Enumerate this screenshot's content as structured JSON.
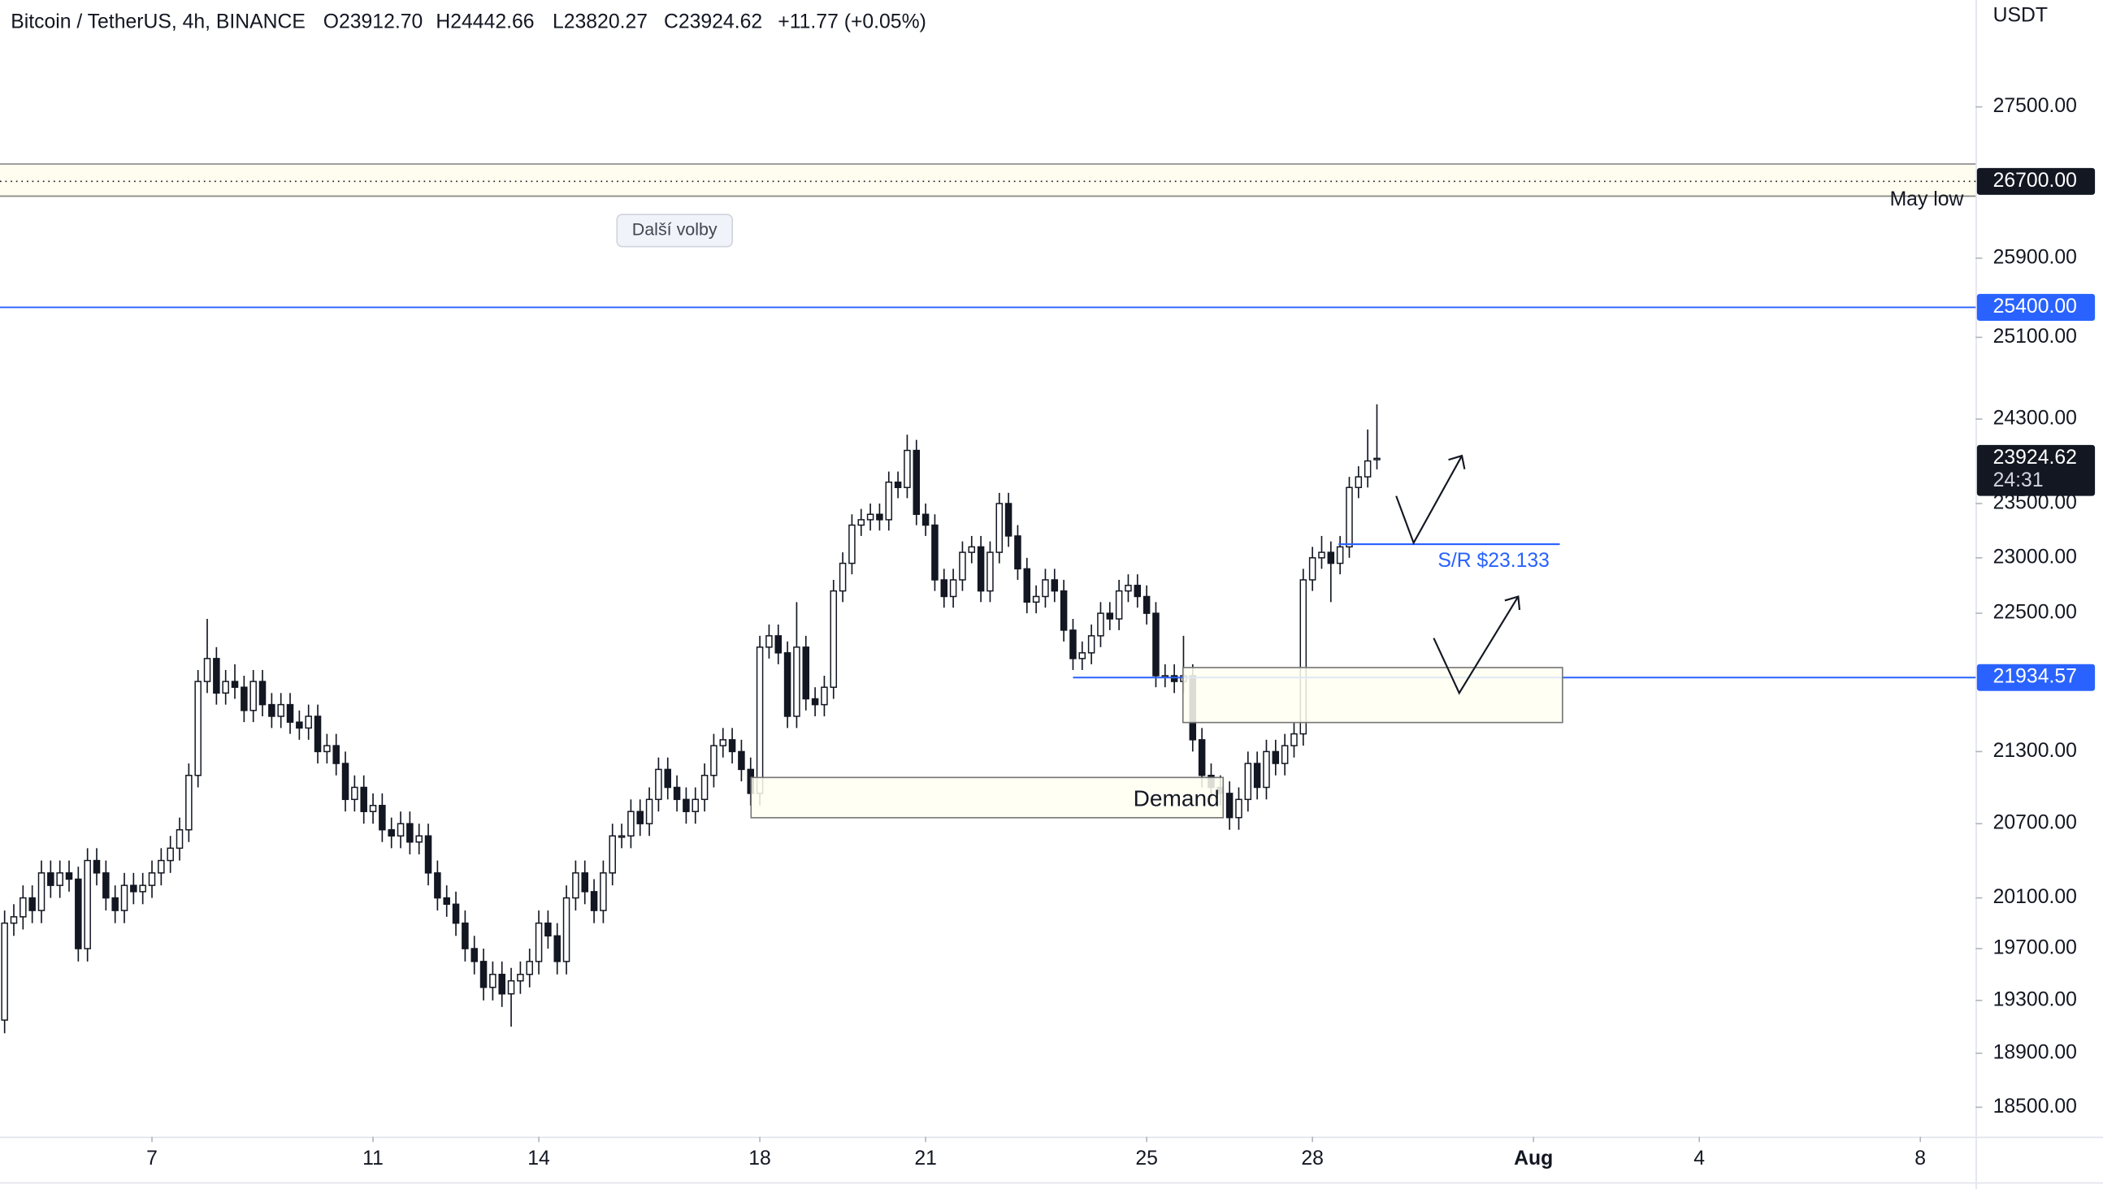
{
  "chart_data": {
    "type": "candlestick",
    "header": {
      "symbol": "Bitcoin / TetherUS, 4h, BINANCE",
      "open": "O23912.70",
      "high": "H24442.66",
      "low": "L23820.27",
      "close": "C23924.62",
      "change": "+11.77 (+0.05%)"
    },
    "currency": "USDT",
    "log_scale": true,
    "grid": false,
    "ylim": [
      18285,
      28690
    ],
    "yticks": [
      {
        "value": 18500,
        "label": "18500.00"
      },
      {
        "value": 18900,
        "label": "18900.00"
      },
      {
        "value": 19300,
        "label": "19300.00"
      },
      {
        "value": 19700,
        "label": "19700.00"
      },
      {
        "value": 20100,
        "label": "20100.00"
      },
      {
        "value": 20700,
        "label": "20700.00"
      },
      {
        "value": 21300,
        "label": "21300.00"
      },
      {
        "value": 22500,
        "label": "22500.00"
      },
      {
        "value": 23000,
        "label": "23000.00"
      },
      {
        "value": 23500,
        "label": "23500.00"
      },
      {
        "value": 24300,
        "label": "24300.00"
      },
      {
        "value": 25100,
        "label": "25100.00"
      },
      {
        "value": 25900,
        "label": "25900.00"
      },
      {
        "value": 27500,
        "label": "27500.00"
      }
    ],
    "xlim": [
      -0.5,
      214
    ],
    "xticks": [
      {
        "value": 16,
        "label": "7"
      },
      {
        "value": 40,
        "label": "11"
      },
      {
        "value": 58,
        "label": "14"
      },
      {
        "value": 82,
        "label": "18"
      },
      {
        "value": 100,
        "label": "21"
      },
      {
        "value": 124,
        "label": "25"
      },
      {
        "value": 142,
        "label": "28"
      },
      {
        "value": 166,
        "label": "Aug"
      },
      {
        "value": 184,
        "label": "4"
      },
      {
        "value": 208,
        "label": "8"
      }
    ],
    "up_color": "#ffffff",
    "down_color": "#131722",
    "border_color": "#131722",
    "open": [
      19150,
      19900,
      19950,
      20100,
      20000,
      20300,
      20200,
      20300,
      20250,
      19700,
      20400,
      20300,
      20100,
      20000,
      20200,
      20150,
      20200,
      20300,
      20400,
      20500,
      20650,
      21100,
      21900,
      22100,
      21800,
      21900,
      21850,
      21650,
      21900,
      21700,
      21600,
      21700,
      21550,
      21500,
      21600,
      21300,
      21350,
      21200,
      20900,
      21000,
      20800,
      20850,
      20650,
      20600,
      20700,
      20550,
      20600,
      20300,
      20100,
      20050,
      19900,
      19700,
      19600,
      19400,
      19500,
      19350,
      19450,
      19500,
      19600,
      19900,
      19800,
      19600,
      20100,
      20300,
      20150,
      20000,
      20300,
      20600,
      20600,
      20800,
      20700,
      20900,
      21150,
      21000,
      20900,
      20800,
      20900,
      21100,
      21350,
      21400,
      21300,
      21150,
      20950,
      22200,
      22300,
      22150,
      21600,
      22200,
      21750,
      21700,
      21850,
      22700,
      22950,
      23300,
      23350,
      23400,
      23350,
      23700,
      23650,
      24000,
      23400,
      23300,
      22800,
      22650,
      22800,
      23050,
      23100,
      22700,
      23050,
      23500,
      23200,
      22900,
      22600,
      22650,
      22800,
      22700,
      22350,
      22100,
      22150,
      22300,
      22500,
      22450,
      22700,
      22750,
      22650,
      22500,
      21950,
      21950,
      21900,
      21950,
      21400,
      21100,
      21000,
      20950,
      20750,
      20900,
      21200,
      21000,
      21300,
      21200,
      21350,
      21450,
      22800,
      23000,
      23050,
      22950,
      23100,
      23650,
      23750,
      23912.7
    ],
    "high": [
      20000,
      20050,
      20200,
      20200,
      20400,
      20400,
      20400,
      20400,
      20350,
      20500,
      20500,
      20400,
      20200,
      20300,
      20300,
      20300,
      20400,
      20500,
      20600,
      20750,
      21200,
      22000,
      22450,
      22200,
      22000,
      22050,
      21950,
      22000,
      22000,
      21800,
      21800,
      21800,
      21650,
      21700,
      21700,
      21450,
      21450,
      21300,
      21100,
      21100,
      20950,
      20950,
      20750,
      20800,
      20800,
      20700,
      20700,
      20400,
      20200,
      20150,
      20000,
      19800,
      19700,
      19600,
      19600,
      19550,
      19600,
      19700,
      20000,
      20000,
      19900,
      20200,
      20400,
      20400,
      20250,
      20400,
      20700,
      20700,
      20900,
      20900,
      21000,
      21250,
      21250,
      21100,
      21000,
      21000,
      21200,
      21450,
      21500,
      21500,
      21400,
      21250,
      22300,
      22400,
      22400,
      22250,
      22600,
      22300,
      21850,
      21950,
      22800,
      23050,
      23400,
      23450,
      23500,
      23500,
      23800,
      23800,
      24150,
      24100,
      23500,
      23400,
      22900,
      22900,
      23150,
      23200,
      23200,
      23150,
      23600,
      23600,
      23300,
      23000,
      22750,
      22900,
      22900,
      22800,
      22450,
      22250,
      22400,
      22600,
      22600,
      22800,
      22850,
      22850,
      22750,
      22600,
      22050,
      22050,
      22300,
      22050,
      21500,
      21200,
      21100,
      21050,
      21000,
      21300,
      21300,
      21400,
      21400,
      21450,
      21550,
      22900,
      23100,
      23200,
      23150,
      23200,
      23750,
      23850,
      24200,
      24442.66
    ],
    "low": [
      19050,
      19800,
      19850,
      19900,
      19900,
      20100,
      20100,
      20150,
      19600,
      19600,
      20200,
      20000,
      19900,
      19900,
      20050,
      20050,
      20100,
      20200,
      20300,
      20400,
      20550,
      21000,
      21800,
      21700,
      21700,
      21750,
      21550,
      21550,
      21600,
      21500,
      21500,
      21450,
      21400,
      21400,
      21200,
      21200,
      21100,
      20800,
      20800,
      20700,
      20700,
      20550,
      20500,
      20500,
      20450,
      20450,
      20200,
      20000,
      19950,
      19800,
      19600,
      19500,
      19300,
      19300,
      19250,
      19100,
      19350,
      19400,
      19500,
      19700,
      19500,
      19500,
      20000,
      20050,
      19900,
      19900,
      20200,
      20500,
      20500,
      20600,
      20600,
      20800,
      20900,
      20800,
      20700,
      20700,
      20800,
      21000,
      21250,
      21200,
      21050,
      20850,
      20850,
      22100,
      22050,
      21500,
      21500,
      21650,
      21600,
      21600,
      21750,
      22600,
      22850,
      23200,
      23250,
      23250,
      23250,
      23550,
      23550,
      23300,
      23200,
      22700,
      22550,
      22550,
      22700,
      22950,
      22600,
      22600,
      22950,
      23100,
      22800,
      22500,
      22500,
      22550,
      22600,
      22250,
      22000,
      22000,
      22050,
      22200,
      22350,
      22350,
      22600,
      22550,
      22400,
      21850,
      21850,
      21800,
      21800,
      21300,
      21000,
      20900,
      20850,
      20650,
      20650,
      20800,
      20900,
      20900,
      21100,
      21100,
      21250,
      21350,
      22700,
      22900,
      22600,
      22850,
      23000,
      23550,
      23650,
      23820.27
    ],
    "close": [
      19900,
      19950,
      20100,
      20000,
      20300,
      20200,
      20300,
      20250,
      19700,
      20400,
      20300,
      20100,
      20000,
      20200,
      20150,
      20200,
      20300,
      20400,
      20500,
      20650,
      21100,
      21900,
      22100,
      21800,
      21900,
      21850,
      21650,
      21900,
      21700,
      21600,
      21700,
      21550,
      21500,
      21600,
      21300,
      21350,
      21200,
      20900,
      21000,
      20800,
      20850,
      20650,
      20600,
      20700,
      20550,
      20600,
      20300,
      20100,
      20050,
      19900,
      19700,
      19600,
      19400,
      19500,
      19350,
      19450,
      19500,
      19600,
      19900,
      19800,
      19600,
      20100,
      20300,
      20150,
      20000,
      20300,
      20600,
      20600,
      20800,
      20700,
      20900,
      21150,
      21000,
      20900,
      20800,
      20900,
      21100,
      21350,
      21400,
      21300,
      21150,
      20950,
      22200,
      22300,
      22150,
      21600,
      22200,
      21750,
      21700,
      21850,
      22700,
      22950,
      23300,
      23350,
      23400,
      23350,
      23700,
      23650,
      24000,
      23400,
      23300,
      22800,
      22650,
      22800,
      23050,
      23100,
      22700,
      23050,
      23500,
      23200,
      22900,
      22600,
      22650,
      22800,
      22700,
      22350,
      22100,
      22150,
      22300,
      22500,
      22450,
      22700,
      22750,
      22650,
      22500,
      21950,
      21950,
      21900,
      21950,
      21400,
      21100,
      21000,
      20950,
      20750,
      20900,
      21200,
      21000,
      21300,
      21200,
      21350,
      21450,
      22800,
      23000,
      23050,
      22950,
      23100,
      23650,
      23750,
      23900,
      23924.62
    ],
    "hlines": [
      {
        "value": 26700,
        "label": "26700.00",
        "color": "#131722"
      },
      {
        "value": 25400,
        "label": "25400.00",
        "color": "#2962ff"
      },
      {
        "value": 21934.57,
        "label": "21934.57",
        "color": "#2962ff"
      }
    ],
    "last_price": {
      "value": 23924.62,
      "label": "23924.62",
      "countdown": "24:31"
    },
    "annotations": {
      "may_low": "May low",
      "sr": "S/R $23.133",
      "demand": "Demand",
      "button": "Další volby"
    }
  }
}
